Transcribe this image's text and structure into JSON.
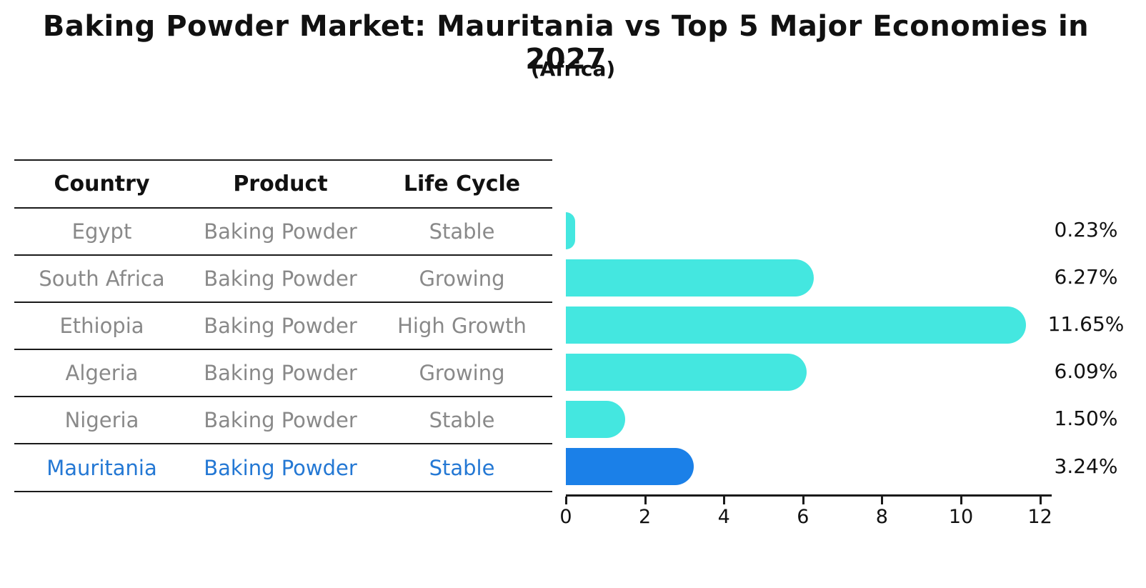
{
  "title": "Baking Powder Market: Mauritania vs Top 5 Major Economies in 2027",
  "subtitle": "(Africa)",
  "table": {
    "headers": {
      "country": "Country",
      "product": "Product",
      "life_cycle": "Life Cycle"
    },
    "rows": [
      {
        "country": "Egypt",
        "product": "Baking Powder",
        "life_cycle": "Stable",
        "highlight": false
      },
      {
        "country": "South Africa",
        "product": "Baking Powder",
        "life_cycle": "Growing",
        "highlight": false
      },
      {
        "country": "Ethiopia",
        "product": "Baking Powder",
        "life_cycle": "High Growth",
        "highlight": false
      },
      {
        "country": "Algeria",
        "product": "Baking Powder",
        "life_cycle": "Growing",
        "highlight": false
      },
      {
        "country": "Nigeria",
        "product": "Baking Powder",
        "life_cycle": "Stable",
        "highlight": false
      },
      {
        "country": "Mauritania",
        "product": "Baking Powder",
        "life_cycle": "Stable",
        "highlight": true
      }
    ]
  },
  "chart_data": {
    "type": "bar",
    "orientation": "horizontal",
    "categories": [
      "Egypt",
      "South Africa",
      "Ethiopia",
      "Algeria",
      "Nigeria",
      "Mauritania"
    ],
    "values": [
      0.23,
      6.27,
      11.65,
      6.09,
      1.5,
      3.24
    ],
    "value_labels": [
      "0.23%",
      "6.27%",
      "11.65%",
      "6.09%",
      "1.50%",
      "3.24%"
    ],
    "x_ticks": [
      "0",
      "2",
      "4",
      "6",
      "8",
      "10",
      "12"
    ],
    "xlim": [
      0,
      12.3
    ],
    "grid": false,
    "legend": "none",
    "bar_color": "#44e7e0",
    "highlight_color": "#1b80e8",
    "highlight_index": 5,
    "highlight_text_color": "#2478d4"
  }
}
